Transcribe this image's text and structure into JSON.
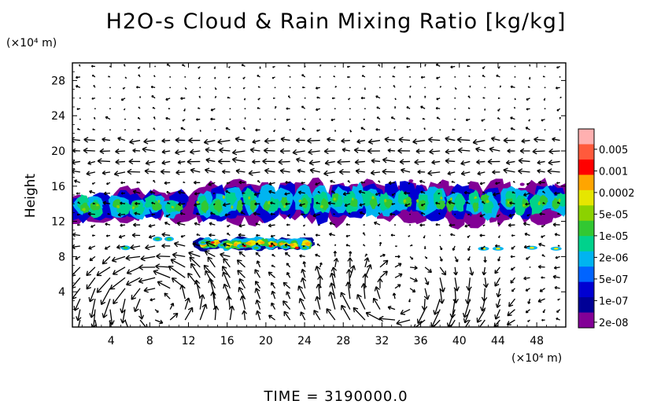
{
  "chart_data": {
    "type": "heatmap",
    "title": "H2O-s Cloud & Rain Mixing Ratio [kg/kg]",
    "ylabel": "Height",
    "yunit": "(×10⁴ m)",
    "xunit": "(×10⁴ m)",
    "xlim": [
      0,
      51
    ],
    "ylim": [
      0,
      30
    ],
    "xticks": [
      4,
      8,
      12,
      16,
      20,
      24,
      28,
      32,
      36,
      40,
      44,
      48
    ],
    "yticks": [
      4,
      8,
      12,
      16,
      20,
      24,
      28
    ],
    "colorbar": {
      "labels": [
        "0.005",
        "0.001",
        "0.0002",
        "5e-05",
        "1e-05",
        "2e-06",
        "5e-07",
        "1e-07",
        "2e-08"
      ],
      "colors": [
        "#ffb0b0",
        "#ff5a3c",
        "#ff0000",
        "#ffa500",
        "#e6e600",
        "#8cd200",
        "#32c832",
        "#00d28c",
        "#00b4f0",
        "#0064ff",
        "#0000d2",
        "#000096",
        "#820096"
      ]
    },
    "cloud_regions": [
      {
        "x": [
          0,
          11.5
        ],
        "y": [
          11.8,
          15.8
        ],
        "level": "1e-05"
      },
      {
        "x": [
          12.5,
          51
        ],
        "y": [
          11.8,
          16.6
        ],
        "level": "1e-05"
      },
      {
        "x": [
          5.5,
          25
        ],
        "y": [
          8.6,
          10.2
        ],
        "level": "5e-05"
      },
      {
        "x": [
          42,
          48
        ],
        "y": [
          8.6,
          9.4
        ],
        "level": "2e-06"
      }
    ],
    "vortices": [
      {
        "x": 9,
        "y": 3
      },
      {
        "x": 34,
        "y": 3
      }
    ],
    "grid": false,
    "legend_position": "right"
  },
  "text": {
    "title": "H2O-s Cloud & Rain Mixing Ratio [kg/kg]",
    "ylabel": "Height",
    "yunit": "(×10⁴ m)",
    "xunit": "(×10⁴ m)",
    "time": "TIME  =  3190000.0"
  }
}
